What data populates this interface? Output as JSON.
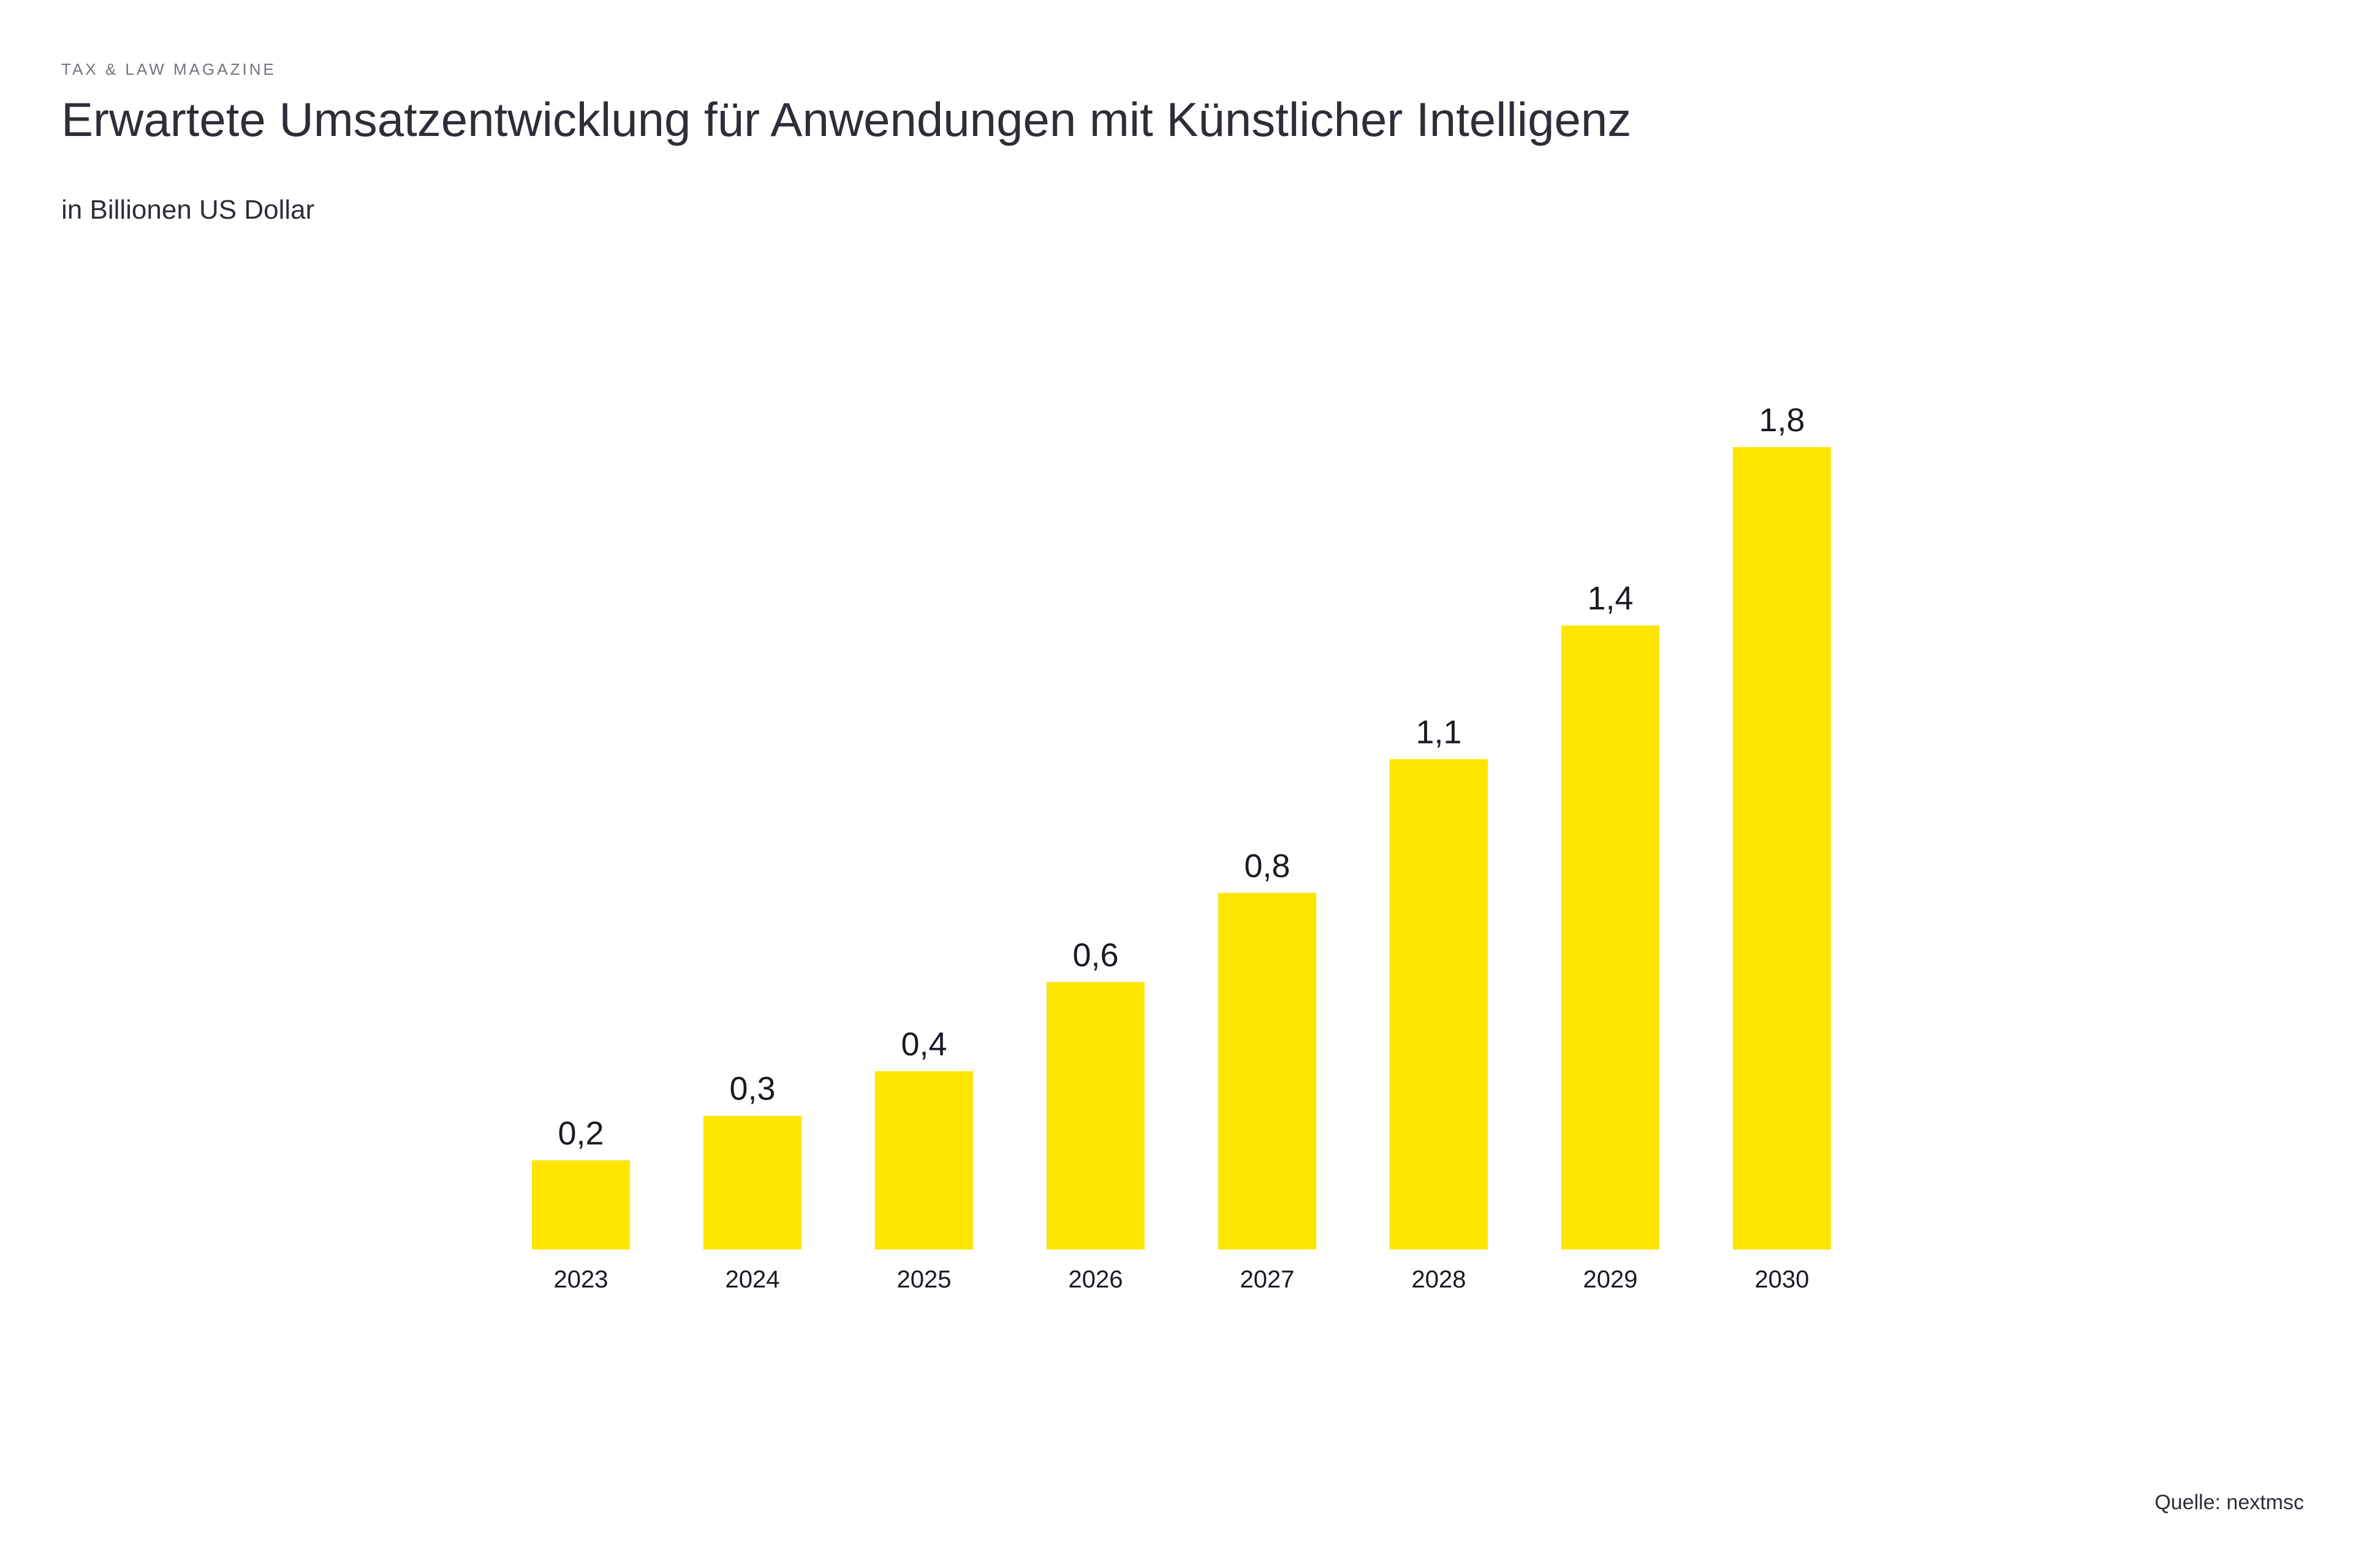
{
  "header": {
    "kicker": "TAX & LAW MAGAZINE",
    "title": "Erwartete Umsatzentwicklung für Anwendungen mit Künstlicher Intelligenz",
    "subtitle": "in Billionen US Dollar"
  },
  "footer": {
    "source": "Quelle: nextmsc"
  },
  "colors": {
    "bar": "#ffe600",
    "text": "#2e2e38",
    "kicker": "#747480"
  },
  "chart_data": {
    "type": "bar",
    "title": "Erwartete Umsatzentwicklung für Anwendungen mit Künstlicher Intelligenz",
    "ylabel": "in Billionen US Dollar",
    "xlabel": "",
    "categories": [
      "2023",
      "2024",
      "2025",
      "2026",
      "2027",
      "2028",
      "2029",
      "2030"
    ],
    "values": [
      0.2,
      0.3,
      0.4,
      0.6,
      0.8,
      1.1,
      1.4,
      1.8
    ],
    "value_labels": [
      "0,2",
      "0,3",
      "0,4",
      "0,6",
      "0,8",
      "1,1",
      "1,4",
      "1,8"
    ],
    "ylim": [
      0,
      1.8
    ],
    "grid": false,
    "legend": "none"
  }
}
